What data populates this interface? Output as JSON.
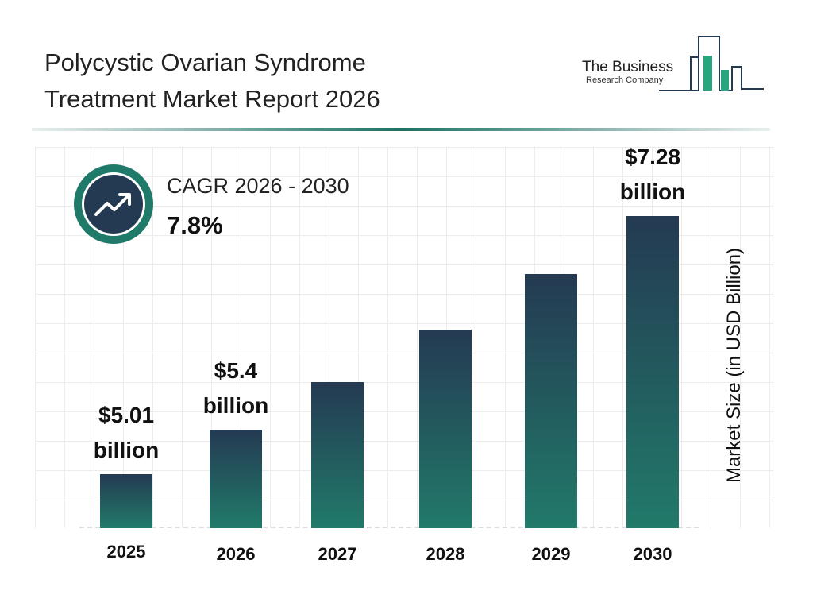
{
  "header": {
    "title_line1": "Polycystic Ovarian Syndrome",
    "title_line2": "Treatment Market Report 2026"
  },
  "logo": {
    "line1": "The Business",
    "line2": "Research Company"
  },
  "cagr": {
    "label": "CAGR 2026 - 2030",
    "value": "7.8%",
    "icon": "trending-up-icon"
  },
  "colors": {
    "bar_top": "#243a52",
    "bar_bottom": "#217a6a",
    "accent": "#1f7a6a"
  },
  "chart_data": {
    "type": "bar",
    "categories": [
      "2025",
      "2026",
      "2027",
      "2028",
      "2029",
      "2030"
    ],
    "values": [
      5.01,
      5.4,
      5.82,
      6.28,
      6.77,
      7.28
    ],
    "data_labels": [
      {
        "index": 0,
        "value": "$5.01",
        "unit": "billion"
      },
      {
        "index": 1,
        "value": "$5.4",
        "unit": "billion"
      },
      {
        "index": 5,
        "value": "$7.28",
        "unit": "billion"
      }
    ],
    "ylabel": "Market Size (in USD Billion)",
    "xlabel": "",
    "grid": true
  }
}
